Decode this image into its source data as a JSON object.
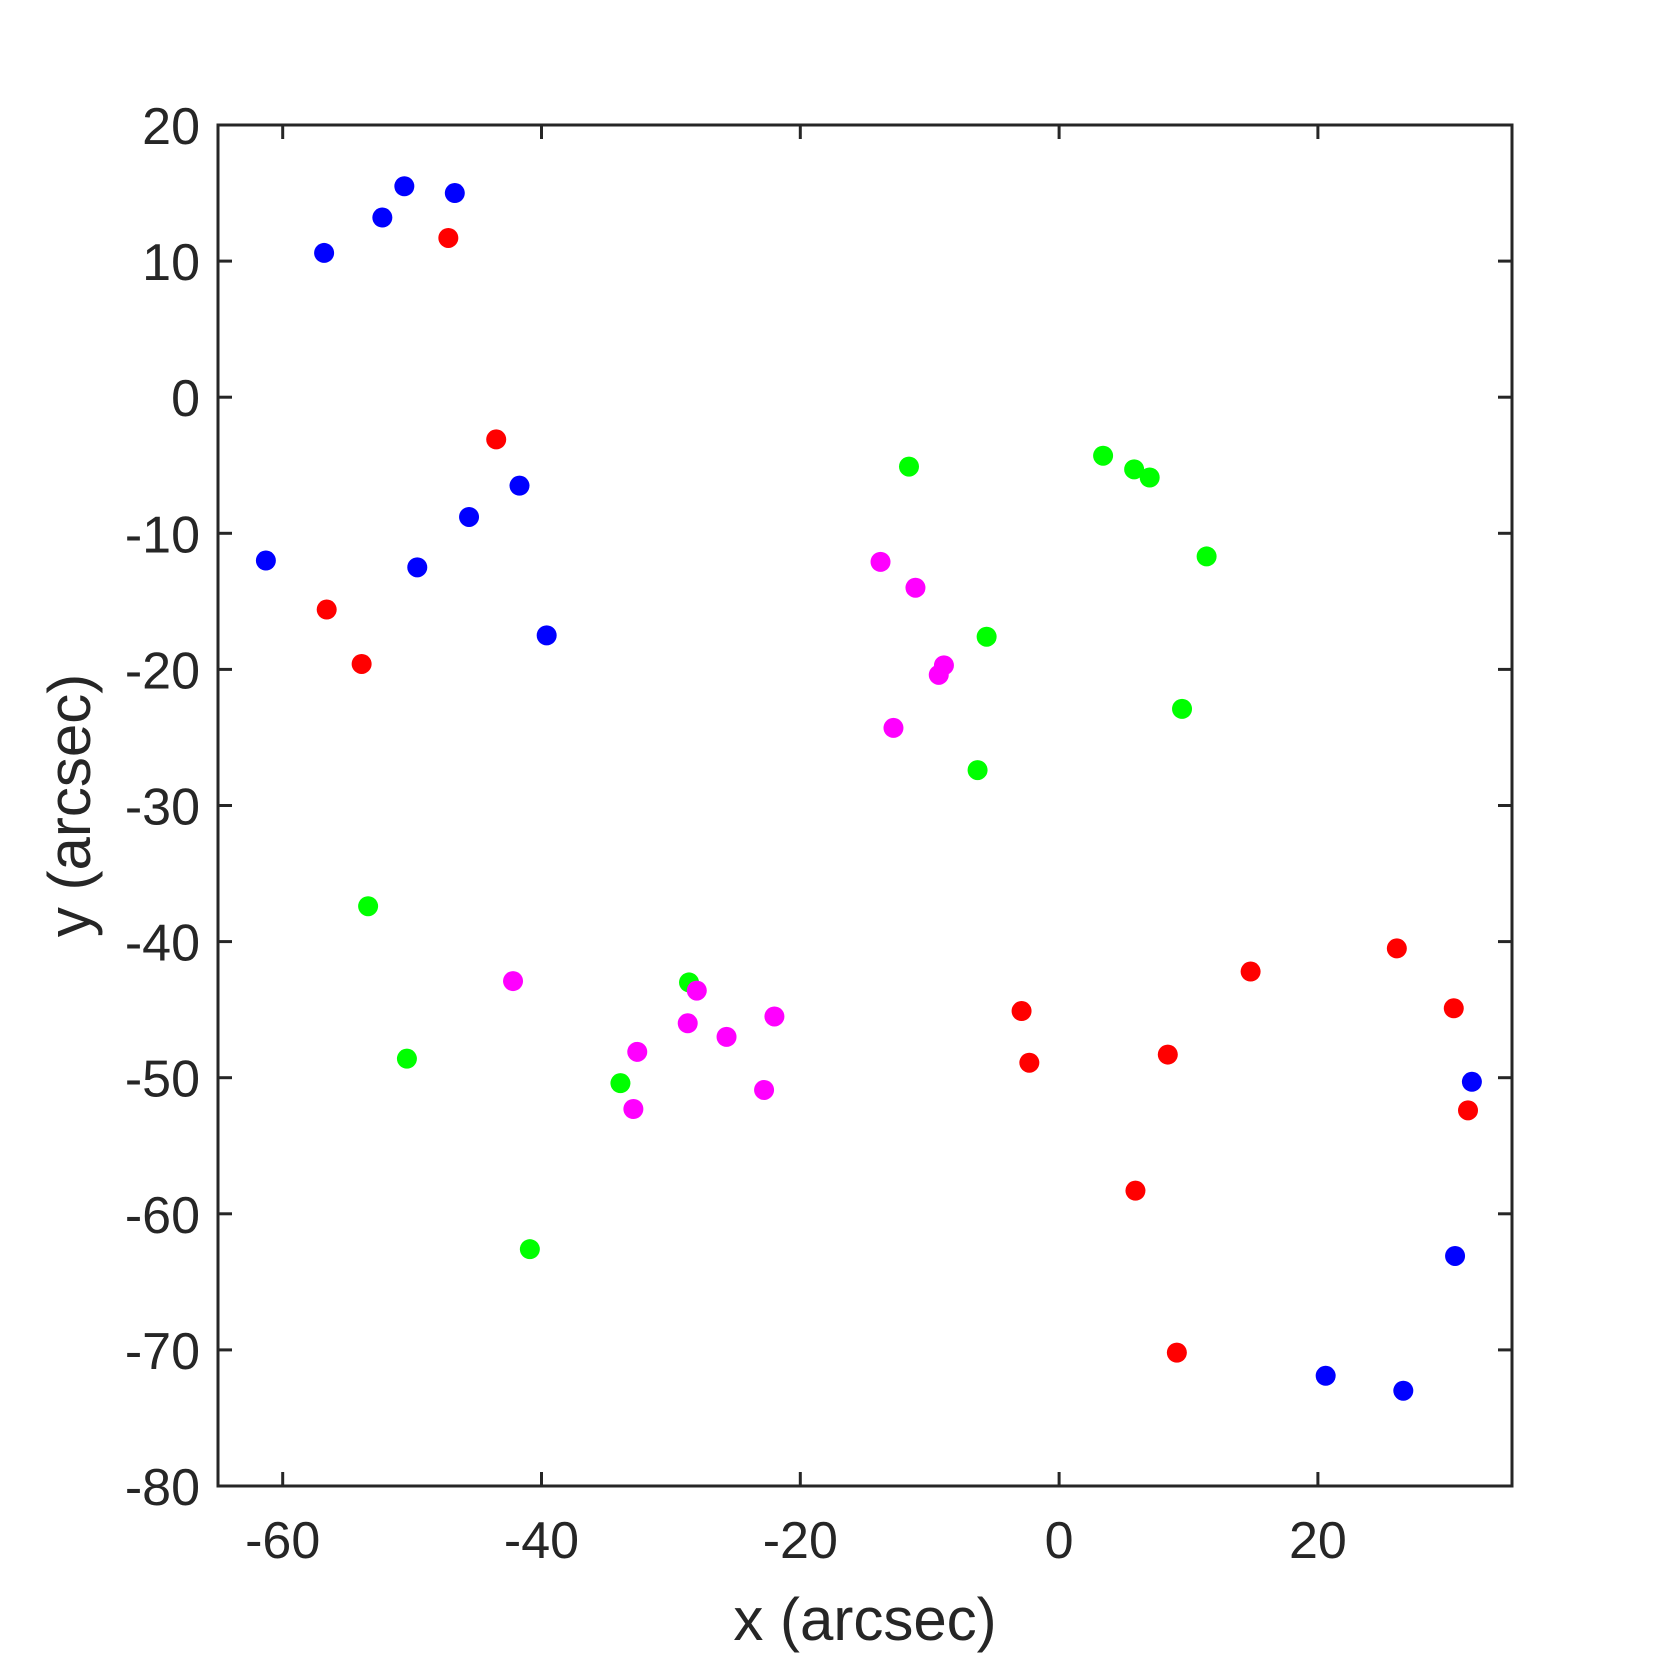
{
  "chart_data": {
    "type": "scatter",
    "title": "",
    "xlabel": "x (arcsec)",
    "ylabel": "y (arcsec)",
    "xlim": [
      -65,
      35
    ],
    "ylim": [
      -80,
      20
    ],
    "xticks": [
      -60,
      -40,
      -20,
      0,
      20
    ],
    "yticks": [
      20,
      10,
      0,
      -10,
      -20,
      -30,
      -40,
      -50,
      -60,
      -70,
      -80
    ],
    "grid": false,
    "legend": "none",
    "series": [
      {
        "color": "#0000ff",
        "points": [
          [
            -56.8,
            10.6
          ],
          [
            -52.3,
            13.2
          ],
          [
            -50.6,
            15.5
          ],
          [
            -46.7,
            15.0
          ],
          [
            -61.3,
            -12.0
          ],
          [
            -49.6,
            -12.5
          ],
          [
            -45.6,
            -8.8
          ],
          [
            -41.7,
            -6.5
          ],
          [
            -39.6,
            -17.5
          ],
          [
            31.9,
            -50.3
          ],
          [
            30.6,
            -63.1
          ],
          [
            20.6,
            -71.9
          ],
          [
            26.6,
            -73.0
          ]
        ]
      },
      {
        "color": "#ff0000",
        "points": [
          [
            -47.2,
            11.7
          ],
          [
            -43.5,
            -3.1
          ],
          [
            -56.6,
            -15.6
          ],
          [
            -53.9,
            -19.6
          ],
          [
            -2.9,
            -45.1
          ],
          [
            -2.3,
            -48.9
          ],
          [
            8.4,
            -48.3
          ],
          [
            14.8,
            -42.2
          ],
          [
            26.1,
            -40.5
          ],
          [
            30.5,
            -44.9
          ],
          [
            31.6,
            -52.4
          ],
          [
            5.9,
            -58.3
          ],
          [
            9.1,
            -70.2
          ]
        ]
      },
      {
        "color": "#00ff00",
        "points": [
          [
            -11.6,
            -5.1
          ],
          [
            3.4,
            -4.3
          ],
          [
            5.8,
            -5.3
          ],
          [
            7.0,
            -5.9
          ],
          [
            11.4,
            -11.7
          ],
          [
            -5.6,
            -17.6
          ],
          [
            9.5,
            -22.9
          ],
          [
            -6.3,
            -27.4
          ],
          [
            -53.4,
            -37.4
          ],
          [
            -50.4,
            -48.6
          ],
          [
            -28.6,
            -43.0
          ],
          [
            -33.9,
            -50.4
          ],
          [
            -40.9,
            -62.6
          ]
        ]
      },
      {
        "color": "#ff00ff",
        "points": [
          [
            -13.8,
            -12.1
          ],
          [
            -11.1,
            -14.0
          ],
          [
            -8.9,
            -19.7
          ],
          [
            -9.3,
            -20.4
          ],
          [
            -12.8,
            -24.3
          ],
          [
            -42.2,
            -42.9
          ],
          [
            -28.0,
            -43.6
          ],
          [
            -28.7,
            -46.0
          ],
          [
            -25.7,
            -47.0
          ],
          [
            -22.0,
            -45.5
          ],
          [
            -32.6,
            -48.1
          ],
          [
            -32.9,
            -52.3
          ],
          [
            -22.8,
            -50.9
          ]
        ]
      }
    ]
  }
}
